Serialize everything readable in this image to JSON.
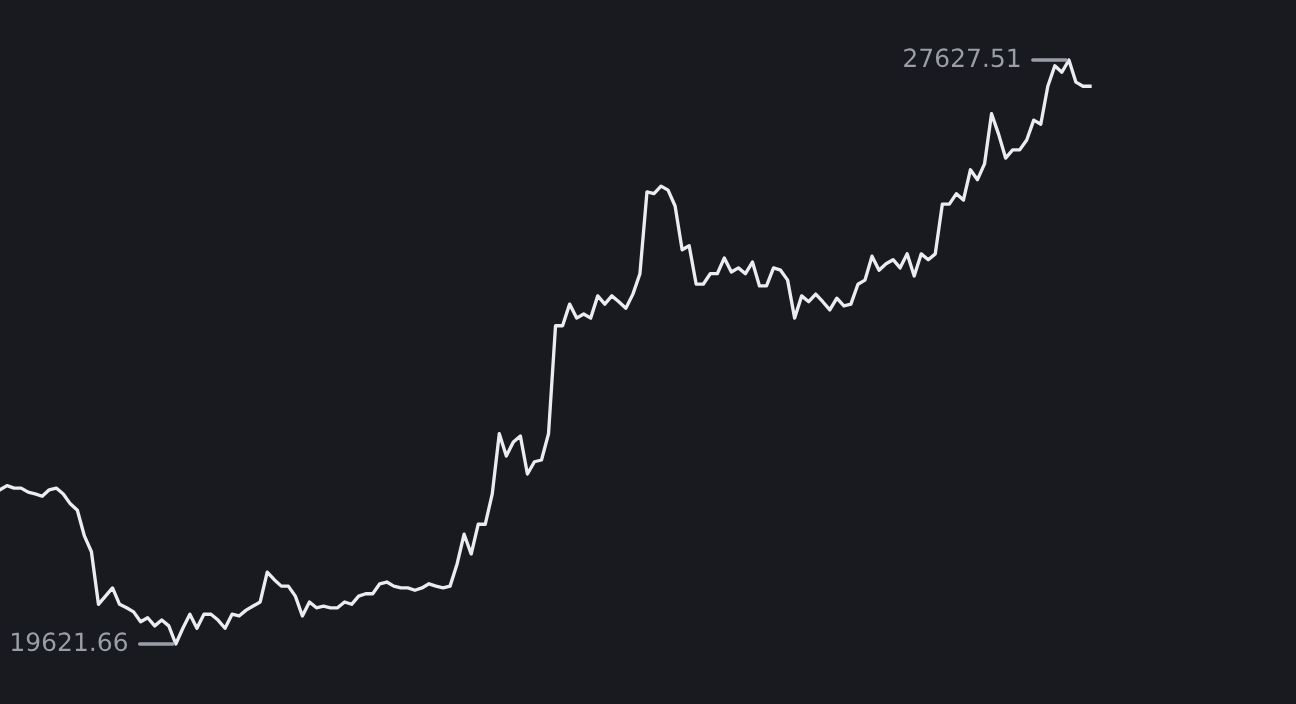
{
  "chart_data": {
    "type": "line",
    "categories": [
      null,
      null,
      null,
      null,
      null,
      null,
      null,
      null,
      null,
      null,
      null,
      null,
      null,
      null,
      null,
      null,
      null,
      null,
      null,
      null,
      null,
      null,
      null,
      null,
      null,
      null,
      null,
      null,
      null,
      null,
      null,
      null,
      null,
      null,
      null,
      null,
      null,
      null,
      null,
      null,
      null,
      null,
      null,
      null,
      null,
      null,
      null,
      null,
      null,
      null,
      null,
      null,
      null,
      null,
      null,
      null,
      null,
      null,
      null,
      null,
      null,
      null,
      null,
      null,
      null,
      null,
      null,
      null,
      null,
      null,
      null,
      null,
      null,
      null,
      null,
      null,
      null,
      null,
      null,
      null,
      null,
      null,
      null,
      null,
      null,
      null,
      null,
      null,
      null,
      null,
      null,
      null,
      null,
      null,
      null,
      null,
      null,
      null,
      null,
      null,
      null,
      null,
      null,
      null,
      null,
      null,
      null,
      null,
      null,
      null,
      null,
      null,
      null,
      null,
      null,
      null,
      null,
      null,
      null,
      null,
      null,
      null,
      null,
      null,
      null,
      null,
      null,
      null,
      null,
      null,
      null,
      null,
      null,
      null,
      null,
      null,
      null,
      null,
      null,
      null,
      null,
      null,
      null,
      null,
      null,
      null,
      null,
      null,
      null,
      null,
      null,
      null,
      null,
      null,
      null,
      null
    ],
    "series": [
      {
        "color": "#eaecef",
        "values": [
          21736,
          21792,
          21759,
          21759,
          21703,
          21679,
          21647,
          21736,
          21759,
          21679,
          21543,
          21455,
          21103,
          20887,
          20166,
          20278,
          20390,
          20166,
          20118,
          20062,
          19926,
          19982,
          19870,
          19950,
          19870,
          19621.66,
          19838,
          20030,
          19838,
          20030,
          20030,
          19950,
          19838,
          20030,
          20006,
          20086,
          20142,
          20198,
          20607,
          20503,
          20415,
          20415,
          20278,
          20006,
          20198,
          20118,
          20142,
          20118,
          20118,
          20198,
          20166,
          20278,
          20311,
          20311,
          20447,
          20471,
          20415,
          20390,
          20390,
          20359,
          20390,
          20447,
          20415,
          20390,
          20415,
          20719,
          21127,
          20855,
          21263,
          21263,
          21679,
          22504,
          22200,
          22392,
          22472,
          21952,
          22120,
          22144,
          22504,
          23985,
          23985,
          24281,
          24089,
          24145,
          24089,
          24394,
          24281,
          24394,
          24314,
          24225,
          24418,
          24698,
          25819,
          25795,
          25899,
          25843,
          25626,
          25026,
          25082,
          24554,
          24554,
          24698,
          24698,
          24914,
          24722,
          24778,
          24698,
          24858,
          24530,
          24530,
          24778,
          24746,
          24610,
          24089,
          24394,
          24314,
          24418,
          24314,
          24201,
          24362,
          24258,
          24281,
          24554,
          24610,
          24938,
          24746,
          24834,
          24890,
          24778,
          24970,
          24666,
          24970,
          24890,
          24970,
          25651,
          25651,
          25795,
          25707,
          26123,
          25987,
          26203,
          26891,
          26611,
          26283,
          26395,
          26395,
          26531,
          26803,
          26747,
          27268,
          27548,
          27460,
          27627.51,
          27324,
          27268,
          27268
        ],
        "value_labels": [
          null,
          null,
          null,
          null,
          null,
          null,
          null,
          null,
          null,
          null,
          null,
          null,
          null,
          null,
          null,
          null,
          null,
          null,
          null,
          null,
          null,
          null,
          null,
          null,
          null,
          "19621.66",
          null,
          null,
          null,
          null,
          null,
          null,
          null,
          null,
          null,
          null,
          null,
          null,
          null,
          null,
          null,
          null,
          null,
          null,
          null,
          null,
          null,
          null,
          null,
          null,
          null,
          null,
          null,
          null,
          null,
          null,
          null,
          null,
          null,
          null,
          null,
          null,
          null,
          null,
          null,
          null,
          null,
          null,
          null,
          null,
          null,
          null,
          null,
          null,
          null,
          null,
          null,
          null,
          null,
          null,
          null,
          null,
          null,
          null,
          null,
          null,
          null,
          null,
          null,
          null,
          null,
          null,
          null,
          null,
          null,
          null,
          null,
          null,
          null,
          null,
          null,
          null,
          null,
          null,
          null,
          null,
          null,
          null,
          null,
          null,
          null,
          null,
          null,
          null,
          null,
          null,
          null,
          null,
          null,
          null,
          null,
          null,
          null,
          null,
          null,
          null,
          null,
          null,
          null,
          null,
          null,
          null,
          null,
          null,
          null,
          null,
          null,
          null,
          null,
          null,
          null,
          null,
          null,
          null,
          null,
          null,
          null,
          null,
          null,
          null,
          null,
          null,
          "27627.51",
          null,
          null,
          null
        ]
      }
    ]
  }
}
